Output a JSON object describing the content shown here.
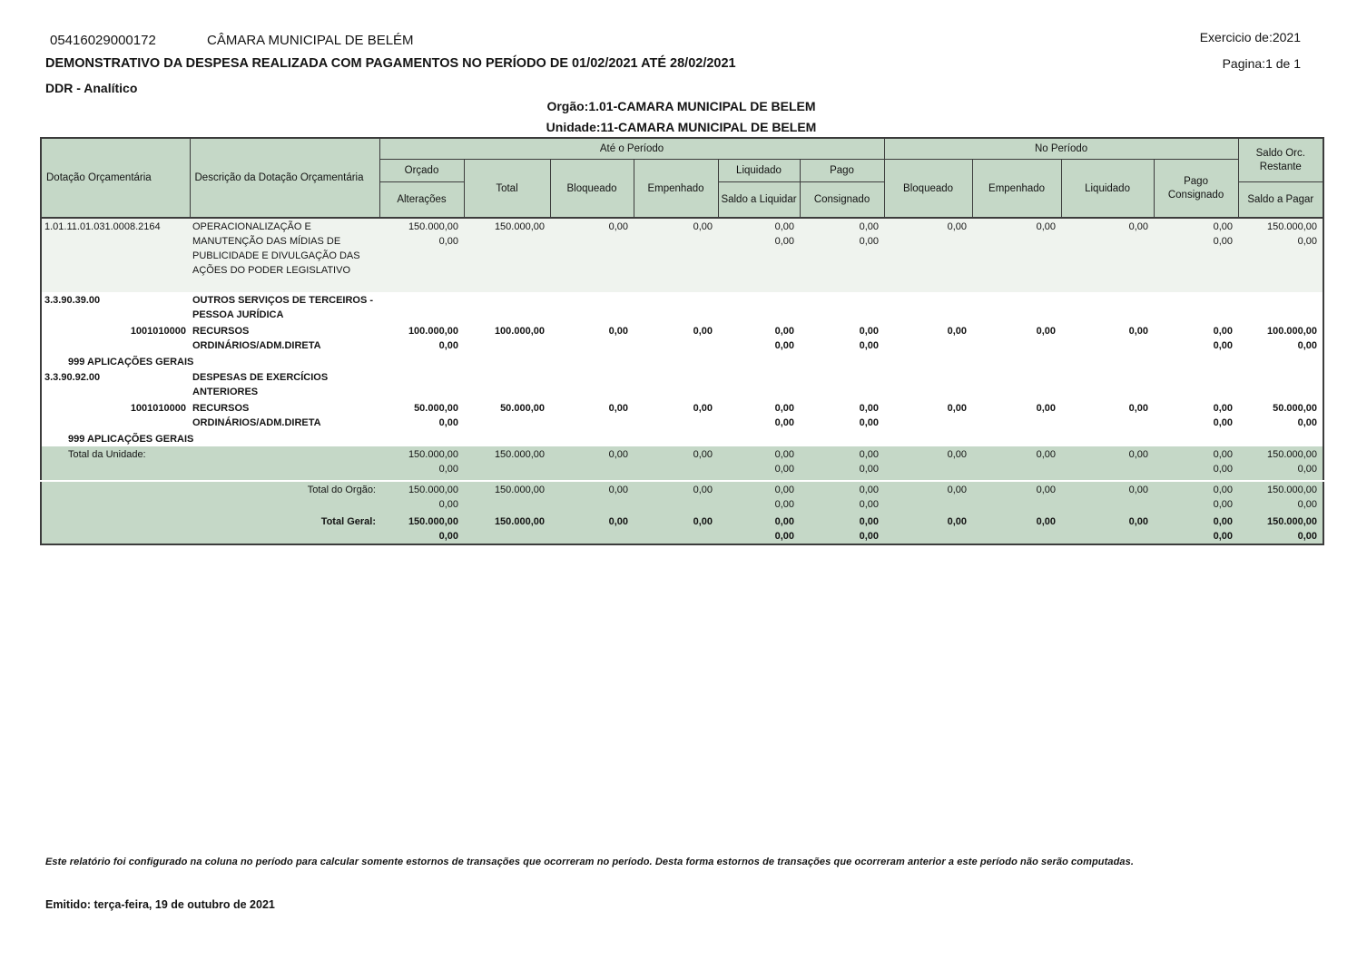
{
  "page_header": {
    "entity_code": "05416029000172",
    "entity_name": "CÂMARA MUNICIPAL DE BELÉM",
    "exercise": "Exercicio de:2021",
    "title": "DEMONSTRATIVO DA DESPESA REALIZADA COM PAGAMENTOS NO PERÍODO DE 01/02/2021 ATÉ 28/02/2021",
    "page": "Pagina:1 de 1",
    "report_type": "DDR - Analítico",
    "orgao": "Orgão:1.01-CAMARA MUNICIPAL DE BELEM",
    "unidade": "Unidade:11-CAMARA MUNICIPAL DE BELEM"
  },
  "colors": {
    "header_band_green": "#c5d8c7",
    "detail_row_light": "#eff3ee",
    "table_border": "#3c3c3c"
  },
  "table": {
    "headers": {
      "col_dotacao": "Dotação Orçamentária",
      "col_descricao": "Descrição da Dotação Orçamentária",
      "group_ate_periodo": "Até o Período",
      "group_no_periodo": "No Período",
      "orcado": "Orçado",
      "alteracoes": "Alterações",
      "total": "Total",
      "bloqueado": "Bloqueado",
      "empenhado": "Empenhado",
      "liquidado": "Liquidado",
      "saldo_a_liquidar": "Saldo a Liquidar",
      "pago": "Pago",
      "consignado": "Consignado",
      "np_bloqueado": "Bloqueado",
      "np_empenhado": "Empenhado",
      "np_liquidado": "Liquidado",
      "np_pago": "Pago",
      "np_consignado": "Consignado",
      "saldo_orc_line1": "Saldo Orc.",
      "saldo_orc_line2": "Restante",
      "saldo_a_pagar": "Saldo a Pagar"
    },
    "rows": [
      {
        "kind": "detail",
        "cells": [
          [
            "1.01.11.01.031.0008.2164"
          ],
          [
            "OPERACIONALIZAÇÃO E MANUTENÇÃO DAS MÍDIAS DE PUBLICIDADE E DIVULGAÇÃO DAS AÇÕES DO PODER LEGISLATIVO"
          ],
          [
            "150.000,00",
            "0,00"
          ],
          [
            "150.000,00"
          ],
          [
            "0,00"
          ],
          [
            "0,00"
          ],
          [
            "0,00",
            "0,00"
          ],
          [
            "0,00",
            "0,00"
          ],
          [
            "0,00"
          ],
          [
            "0,00"
          ],
          [
            "0,00"
          ],
          [
            "0,00",
            "0,00"
          ],
          [
            "150.000,00",
            "0,00"
          ]
        ]
      },
      {
        "kind": "group",
        "cells": [
          [
            "3.3.90.39.00"
          ],
          [
            "OUTROS SERVIÇOS DE TERCEIROS - PESSOA JURÍDICA"
          ],
          [],
          [],
          [],
          [],
          [],
          [],
          [],
          [],
          [],
          [],
          []
        ]
      },
      {
        "kind": "source",
        "cells": [
          [
            "1001010000"
          ],
          [
            "RECURSOS ORDINÁRIOS/ADM.DIRETA"
          ],
          [
            "100.000,00",
            "0,00"
          ],
          [
            "100.000,00"
          ],
          [
            "0,00"
          ],
          [
            "0,00"
          ],
          [
            "0,00",
            "0,00"
          ],
          [
            "0,00",
            "0,00"
          ],
          [
            "0,00"
          ],
          [
            "0,00"
          ],
          [
            "0,00"
          ],
          [
            "0,00",
            "0,00"
          ],
          [
            "100.000,00",
            "0,00"
          ]
        ]
      },
      {
        "kind": "application",
        "cells": [
          [
            "999 APLICAÇÕES GERAIS"
          ],
          [],
          [],
          [],
          [],
          [],
          [],
          [],
          [],
          [],
          [],
          [],
          []
        ]
      },
      {
        "kind": "group",
        "cells": [
          [
            "3.3.90.92.00"
          ],
          [
            "DESPESAS DE EXERCÍCIOS ANTERIORES"
          ],
          [],
          [],
          [],
          [],
          [],
          [],
          [],
          [],
          [],
          [],
          []
        ]
      },
      {
        "kind": "source",
        "cells": [
          [
            "1001010000"
          ],
          [
            "RECURSOS ORDINÁRIOS/ADM.DIRETA"
          ],
          [
            "50.000,00",
            "0,00"
          ],
          [
            "50.000,00"
          ],
          [
            "0,00"
          ],
          [
            "0,00"
          ],
          [
            "0,00",
            "0,00"
          ],
          [
            "0,00",
            "0,00"
          ],
          [
            "0,00"
          ],
          [
            "0,00"
          ],
          [
            "0,00"
          ],
          [
            "0,00",
            "0,00"
          ],
          [
            "50.000,00",
            "0,00"
          ]
        ]
      },
      {
        "kind": "application",
        "cells": [
          [
            "999 APLICAÇÕES GERAIS"
          ],
          [],
          [],
          [],
          [],
          [],
          [],
          [],
          [],
          [],
          [],
          [],
          []
        ]
      },
      {
        "kind": "total-unidade",
        "cells": [
          [
            "Total da Unidade:"
          ],
          [],
          [
            "150.000,00",
            "0,00"
          ],
          [
            "150.000,00"
          ],
          [
            "0,00"
          ],
          [
            "0,00"
          ],
          [
            "0,00",
            "0,00"
          ],
          [
            "0,00",
            "0,00"
          ],
          [
            "0,00"
          ],
          [
            "0,00"
          ],
          [
            "0,00"
          ],
          [
            "0,00",
            "0,00"
          ],
          [
            "150.000,00",
            "0,00"
          ]
        ]
      },
      {
        "kind": "total-orgao",
        "cells": [
          [
            "Total do Orgão:"
          ],
          [],
          [
            "150.000,00",
            "0,00"
          ],
          [
            "150.000,00"
          ],
          [
            "0,00"
          ],
          [
            "0,00"
          ],
          [
            "0,00",
            "0,00"
          ],
          [
            "0,00",
            "0,00"
          ],
          [
            "0,00"
          ],
          [
            "0,00"
          ],
          [
            "0,00"
          ],
          [
            "0,00",
            "0,00"
          ],
          [
            "150.000,00",
            "0,00"
          ]
        ]
      },
      {
        "kind": "total-geral",
        "cells": [
          [
            "Total Geral:"
          ],
          [],
          [
            "150.000,00",
            "0,00"
          ],
          [
            "150.000,00"
          ],
          [
            "0,00"
          ],
          [
            "0,00"
          ],
          [
            "0,00",
            "0,00"
          ],
          [
            "0,00",
            "0,00"
          ],
          [
            "0,00"
          ],
          [
            "0,00"
          ],
          [
            "0,00"
          ],
          [
            "0,00",
            "0,00"
          ],
          [
            "150.000,00",
            "0,00"
          ]
        ]
      }
    ]
  },
  "footer": {
    "note": "Este relatório foi configurado na coluna no período para calcular somente estornos de transações que ocorreram no período. Desta forma estornos de transações que ocorreram anterior a este período não serão computadas.",
    "emitted": "Emitido: terça-feira, 19 de outubro de 2021"
  }
}
